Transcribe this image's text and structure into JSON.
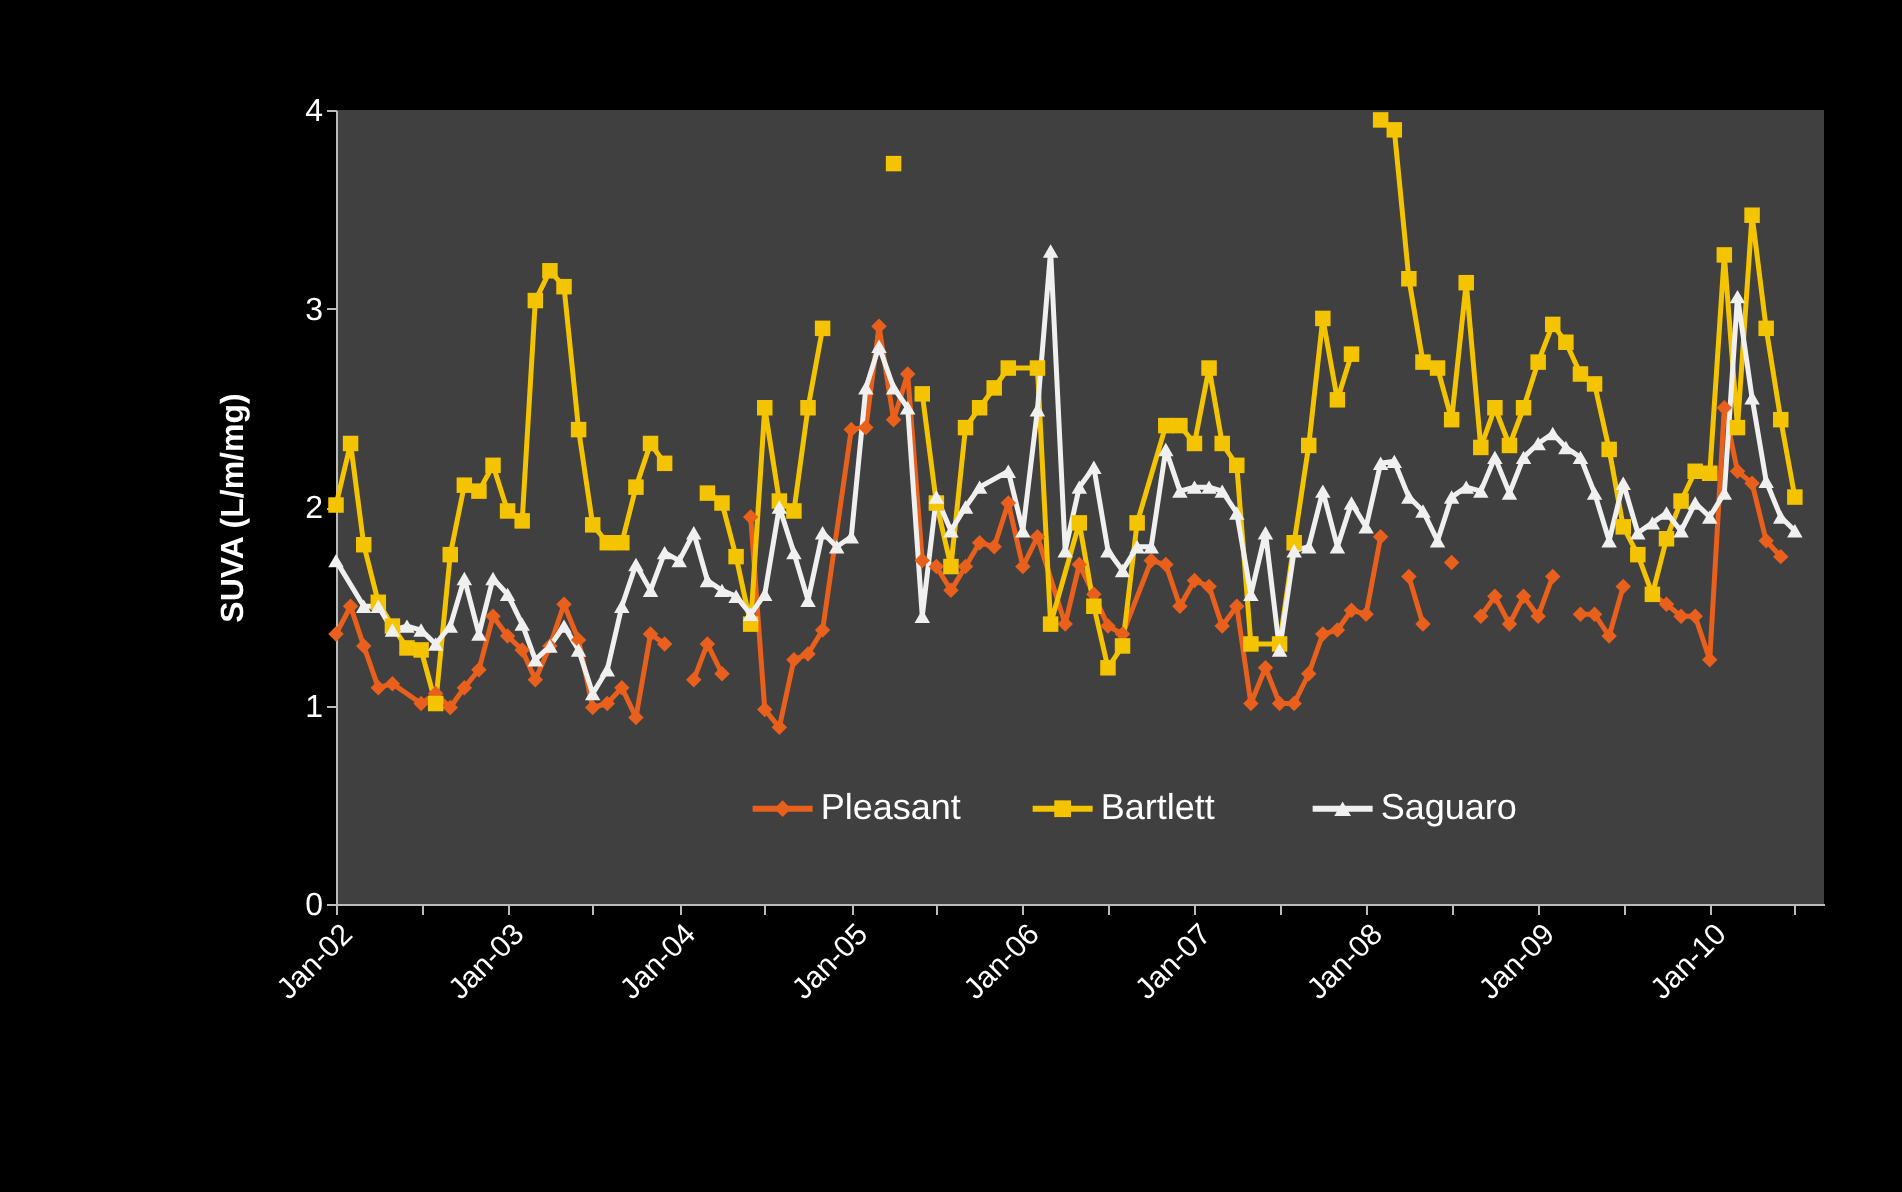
{
  "chart_data": {
    "type": "line",
    "ylabel": "SUVA (L/m/mg)",
    "xlim": [
      "2002-01",
      "2010-09"
    ],
    "xticks": [
      {
        "value": "2002-01",
        "label": "Jan-02"
      },
      {
        "value": "2002-07",
        "label": null
      },
      {
        "value": "2003-01",
        "label": "Jan-03"
      },
      {
        "value": "2003-07",
        "label": null
      },
      {
        "value": "2004-01",
        "label": "Jan-04"
      },
      {
        "value": "2004-07",
        "label": null
      },
      {
        "value": "2005-01",
        "label": "Jan-05"
      },
      {
        "value": "2005-07",
        "label": null
      },
      {
        "value": "2006-01",
        "label": "Jan-06"
      },
      {
        "value": "2006-07",
        "label": null
      },
      {
        "value": "2007-01",
        "label": "Jan-07"
      },
      {
        "value": "2007-07",
        "label": null
      },
      {
        "value": "2008-01",
        "label": "Jan-08"
      },
      {
        "value": "2008-07",
        "label": null
      },
      {
        "value": "2009-01",
        "label": "Jan-09"
      },
      {
        "value": "2009-07",
        "label": null
      },
      {
        "value": "2010-01",
        "label": "Jan-10"
      },
      {
        "value": "2010-07",
        "label": null
      }
    ],
    "ylim": [
      0,
      4
    ],
    "yticks": [
      0,
      1,
      2,
      3,
      4
    ],
    "grid": false,
    "legend": "bottom",
    "line_style": "solid",
    "series": [
      {
        "name": "Pleasant",
        "color": "#e8601c",
        "marker": "diamond",
        "x": [
          "2002-01",
          "2002-02",
          "2002-03",
          "2002-04",
          "2002-05",
          "2002-07",
          "2002-08",
          "2002-09",
          "2002-10",
          "2002-11",
          "2002-12",
          "2003-01",
          "2003-02",
          "2003-03",
          "2003-04",
          "2003-05",
          "2003-06",
          "2003-07",
          "2003-08",
          "2003-09",
          "2003-10",
          "2003-11",
          "2003-12",
          "2004-01",
          "2004-02",
          "2004-03",
          "2004-04",
          "2004-05",
          "2004-06",
          "2004-07",
          "2004-08",
          "2004-09",
          "2004-10",
          "2004-11",
          "2005-01",
          "2005-02",
          "2005-03",
          "2005-04",
          "2005-05",
          "2005-06",
          "2005-07",
          "2005-08",
          "2005-09",
          "2005-10",
          "2005-11",
          "2005-12",
          "2006-01",
          "2006-02",
          "2006-04",
          "2006-05",
          "2006-06",
          "2006-07",
          "2006-08",
          "2006-10",
          "2006-11",
          "2006-12",
          "2007-01",
          "2007-02",
          "2007-03",
          "2007-04",
          "2007-05",
          "2007-06",
          "2007-07",
          "2007-08",
          "2007-09",
          "2007-10",
          "2007-11",
          "2007-12",
          "2008-01",
          "2008-02",
          "2008-03",
          "2008-04",
          "2008-05",
          "2008-06",
          "2008-07",
          "2008-08",
          "2008-09",
          "2008-10",
          "2008-11",
          "2008-12",
          "2009-01",
          "2009-02",
          "2009-03",
          "2009-04",
          "2009-05",
          "2009-06",
          "2009-07",
          "2009-08",
          "2009-09",
          "2009-10",
          "2009-11",
          "2009-12",
          "2010-01",
          "2010-02",
          "2010-03",
          "2010-04",
          "2010-05",
          "2010-06"
        ],
        "values": [
          1.36,
          1.5,
          1.3,
          1.09,
          1.11,
          1.01,
          1.06,
          0.99,
          1.09,
          1.18,
          1.45,
          1.35,
          1.28,
          1.13,
          1.3,
          1.51,
          1.33,
          0.99,
          1.01,
          1.09,
          0.94,
          1.36,
          1.31,
          null,
          1.13,
          1.31,
          1.16,
          null,
          1.95,
          0.98,
          0.89,
          1.23,
          1.26,
          1.38,
          2.39,
          2.4,
          2.91,
          2.44,
          2.67,
          1.73,
          1.7,
          1.58,
          1.7,
          1.82,
          1.8,
          2.02,
          1.7,
          1.85,
          1.41,
          1.71,
          1.56,
          1.4,
          1.36,
          1.73,
          1.71,
          1.5,
          1.63,
          1.6,
          1.4,
          1.5,
          1.01,
          1.19,
          1.01,
          1.01,
          1.16,
          1.36,
          1.38,
          1.48,
          1.46,
          1.85,
          null,
          1.65,
          1.41,
          null,
          1.72,
          null,
          1.45,
          1.55,
          1.41,
          1.55,
          1.45,
          1.65,
          null,
          1.46,
          1.46,
          1.35,
          1.6,
          null,
          1.56,
          1.51,
          1.45,
          1.45,
          1.23,
          2.5,
          2.18,
          2.12,
          1.83,
          1.75
        ]
      },
      {
        "name": "Bartlett",
        "color": "#f5c400",
        "marker": "square",
        "x": [
          "2002-01",
          "2002-02",
          "2002-03",
          "2002-04",
          "2002-05",
          "2002-06",
          "2002-07",
          "2002-08",
          "2002-09",
          "2002-10",
          "2002-11",
          "2002-12",
          "2003-01",
          "2003-02",
          "2003-03",
          "2003-04",
          "2003-05",
          "2003-06",
          "2003-07",
          "2003-08",
          "2003-09",
          "2003-10",
          "2003-11",
          "2003-12",
          "2004-01",
          "2004-03",
          "2004-04",
          "2004-05",
          "2004-06",
          "2004-07",
          "2004-08",
          "2004-09",
          "2004-10",
          "2004-11",
          "2005-01",
          "2005-04",
          "2005-05",
          "2005-06",
          "2005-07",
          "2005-08",
          "2005-09",
          "2005-10",
          "2005-11",
          "2005-12",
          "2006-02",
          "2006-03",
          "2006-05",
          "2006-06",
          "2006-07",
          "2006-08",
          "2006-09",
          "2006-11",
          "2006-12",
          "2007-01",
          "2007-02",
          "2007-03",
          "2007-04",
          "2007-05",
          "2007-07",
          "2007-08",
          "2007-09",
          "2007-10",
          "2007-11",
          "2007-12",
          "2008-01",
          "2008-02",
          "2008-03",
          "2008-04",
          "2008-05",
          "2008-06",
          "2008-07",
          "2008-08",
          "2008-09",
          "2008-10",
          "2008-11",
          "2008-12",
          "2009-01",
          "2009-02",
          "2009-03",
          "2009-04",
          "2009-05",
          "2009-06",
          "2009-07",
          "2009-08",
          "2009-09",
          "2009-10",
          "2009-11",
          "2009-12",
          "2010-01",
          "2010-02",
          "2010-03",
          "2010-04",
          "2010-05",
          "2010-06",
          "2010-07"
        ],
        "values": [
          2.01,
          2.32,
          1.81,
          1.52,
          1.4,
          1.29,
          1.28,
          1.01,
          1.76,
          2.11,
          2.08,
          2.21,
          1.98,
          1.93,
          3.04,
          3.19,
          3.11,
          2.39,
          1.91,
          1.82,
          1.82,
          2.1,
          2.32,
          2.22,
          null,
          2.07,
          2.02,
          1.75,
          1.41,
          2.5,
          2.03,
          1.98,
          2.5,
          2.9,
          null,
          3.73,
          null,
          2.57,
          2.02,
          1.7,
          2.4,
          2.5,
          2.6,
          2.7,
          2.7,
          1.41,
          1.92,
          1.5,
          1.19,
          1.3,
          1.92,
          2.41,
          2.41,
          2.32,
          2.7,
          2.32,
          2.21,
          1.31,
          1.31,
          1.82,
          2.31,
          2.95,
          2.54,
          2.77,
          null,
          3.95,
          3.9,
          3.15,
          2.73,
          2.7,
          2.44,
          3.13,
          2.3,
          2.5,
          2.31,
          2.5,
          2.73,
          2.92,
          2.83,
          2.67,
          2.62,
          2.29,
          1.9,
          1.76,
          1.56,
          1.84,
          2.03,
          2.18,
          2.17,
          3.27,
          2.4,
          3.47,
          2.9,
          2.44,
          2.05
        ]
      },
      {
        "name": "Saguaro",
        "color": "#f0f0f0",
        "marker": "triangle",
        "x": [
          "2002-01",
          "2002-03",
          "2002-04",
          "2002-05",
          "2002-06",
          "2002-07",
          "2002-08",
          "2002-09",
          "2002-10",
          "2002-11",
          "2002-12",
          "2003-01",
          "2003-02",
          "2003-03",
          "2003-04",
          "2003-05",
          "2003-06",
          "2003-07",
          "2003-08",
          "2003-09",
          "2003-10",
          "2003-11",
          "2003-12",
          "2004-01",
          "2004-02",
          "2004-03",
          "2004-04",
          "2004-05",
          "2004-06",
          "2004-07",
          "2004-08",
          "2004-09",
          "2004-10",
          "2004-11",
          "2004-12",
          "2005-01",
          "2005-02",
          "2005-03",
          "2005-04",
          "2005-05",
          "2005-06",
          "2005-07",
          "2005-08",
          "2005-09",
          "2005-10",
          "2005-12",
          "2006-01",
          "2006-02",
          "2006-03",
          "2006-04",
          "2006-05",
          "2006-06",
          "2006-07",
          "2006-08",
          "2006-09",
          "2006-10",
          "2006-11",
          "2006-12",
          "2007-01",
          "2007-02",
          "2007-03",
          "2007-04",
          "2007-05",
          "2007-06",
          "2007-07",
          "2007-08",
          "2007-09",
          "2007-10",
          "2007-11",
          "2007-12",
          "2008-01",
          "2008-02",
          "2008-03",
          "2008-04",
          "2008-05",
          "2008-06",
          "2008-07",
          "2008-08",
          "2008-09",
          "2008-10",
          "2008-11",
          "2008-12",
          "2009-01",
          "2009-02",
          "2009-03",
          "2009-04",
          "2009-05",
          "2009-06",
          "2009-07",
          "2009-08",
          "2009-09",
          "2009-10",
          "2009-11",
          "2009-12",
          "2010-01",
          "2010-02",
          "2010-03",
          "2010-04",
          "2010-05",
          "2010-06",
          "2010-07"
        ],
        "values": [
          1.73,
          1.5,
          1.5,
          1.38,
          1.4,
          1.38,
          1.31,
          1.4,
          1.64,
          1.36,
          1.64,
          1.56,
          1.41,
          1.23,
          1.3,
          1.4,
          1.28,
          1.06,
          1.18,
          1.5,
          1.71,
          1.58,
          1.77,
          1.73,
          1.87,
          1.63,
          1.58,
          1.55,
          1.46,
          1.56,
          2.0,
          1.77,
          1.53,
          1.87,
          1.8,
          1.85,
          2.6,
          2.81,
          2.6,
          2.5,
          1.45,
          2.05,
          1.88,
          2.0,
          2.1,
          2.18,
          1.88,
          2.49,
          3.29,
          1.78,
          2.1,
          2.2,
          1.78,
          1.68,
          1.8,
          1.8,
          2.29,
          2.08,
          2.1,
          2.1,
          2.08,
          1.97,
          1.56,
          1.87,
          1.28,
          1.78,
          1.8,
          2.08,
          1.8,
          2.02,
          1.9,
          2.22,
          2.23,
          2.05,
          1.98,
          1.83,
          2.05,
          2.1,
          2.08,
          2.25,
          2.07,
          2.25,
          2.32,
          2.37,
          2.3,
          2.25,
          2.07,
          1.83,
          2.12,
          1.87,
          1.92,
          1.97,
          1.88,
          2.02,
          1.95,
          2.07,
          3.06,
          2.55,
          2.13,
          1.95,
          1.88
        ]
      }
    ]
  }
}
